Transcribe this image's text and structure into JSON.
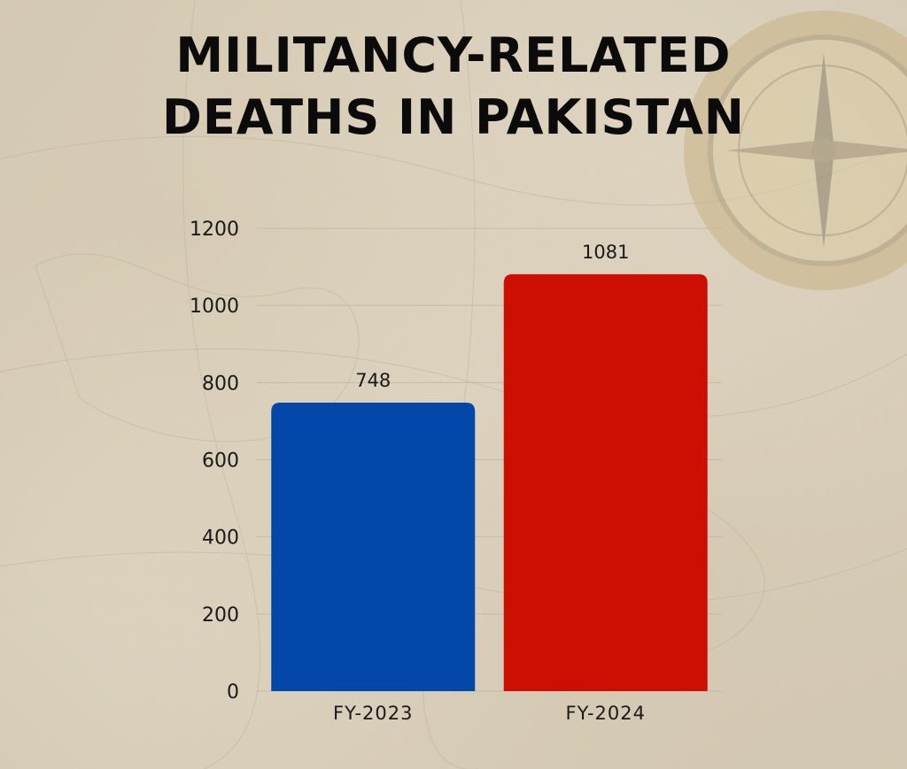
{
  "title_lines": [
    "MILITANCY-RELATED",
    "DEATHS IN PAKISTAN"
  ],
  "colors": {
    "fy2023": "#0348a8",
    "fy2024": "#cc0f02"
  },
  "chart_data": {
    "type": "bar",
    "title": "MILITANCY-RELATED DEATHS IN PAKISTAN",
    "categories": [
      "FY-2023",
      "FY-2024"
    ],
    "values": [
      748,
      1081
    ],
    "data_labels": [
      "748",
      "1081"
    ],
    "bar_colors": [
      "#0348a8",
      "#cc0f02"
    ],
    "xlabel": "",
    "ylabel": "",
    "ylim": [
      0,
      1200
    ],
    "yticks": [
      0,
      200,
      400,
      600,
      800,
      1000,
      1200
    ],
    "grid": true,
    "legend": "none"
  }
}
